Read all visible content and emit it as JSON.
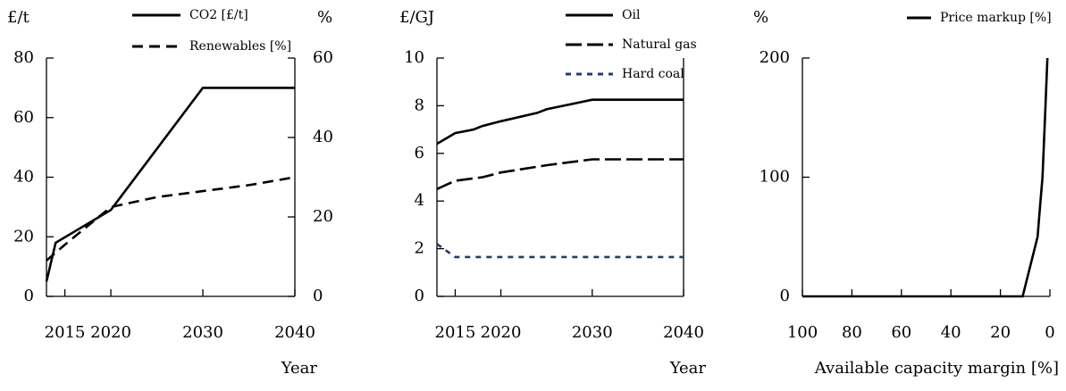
{
  "chart_data": [
    {
      "type": "line",
      "xlabel": "Year",
      "ylabel": "£/t",
      "y2label": "%",
      "xlim": [
        2013,
        2040
      ],
      "xticks": [
        2015,
        2020,
        2030,
        2040
      ],
      "ylim": [
        0,
        80
      ],
      "yticks": [
        0,
        20,
        40,
        60,
        80
      ],
      "y2lim": [
        0,
        60
      ],
      "y2ticks": [
        0,
        20,
        40,
        60
      ],
      "series": [
        {
          "name": "CO2 [£/t]",
          "color": "#000000",
          "line_style": "solid",
          "x": [
            2013,
            2014,
            2020,
            2030,
            2040
          ],
          "values": [
            5,
            18,
            29,
            70,
            70
          ]
        },
        {
          "name": "Renewables [%]",
          "color": "#000000",
          "line_style": "dashed",
          "axis": "y2",
          "x": [
            2013,
            2015,
            2020,
            2025,
            2030,
            2035,
            2040
          ],
          "values": [
            9,
            13,
            22.5,
            25,
            26.5,
            28,
            30
          ]
        }
      ]
    },
    {
      "type": "line",
      "xlabel": "Year",
      "ylabel": "£/GJ",
      "xlim": [
        2013,
        2040
      ],
      "xticks": [
        2015,
        2020,
        2030,
        2040
      ],
      "ylim": [
        0,
        10
      ],
      "yticks": [
        0,
        2,
        4,
        6,
        8,
        10
      ],
      "series": [
        {
          "name": "Oil",
          "color": "#000000",
          "line_style": "solid",
          "x": [
            2013,
            2015,
            2017,
            2018,
            2020,
            2024,
            2025,
            2030,
            2040
          ],
          "values": [
            6.4,
            6.85,
            7.0,
            7.15,
            7.35,
            7.7,
            7.85,
            8.25,
            8.25
          ]
        },
        {
          "name": "Natural gas",
          "color": "#000000",
          "line_style": "longdash",
          "x": [
            2013,
            2015,
            2018,
            2020,
            2025,
            2030,
            2040
          ],
          "values": [
            4.5,
            4.85,
            5.0,
            5.2,
            5.5,
            5.75,
            5.75
          ]
        },
        {
          "name": "Hard coal",
          "color": "#1f3d6b",
          "line_style": "dotted",
          "x": [
            2013,
            2015,
            2040
          ],
          "values": [
            2.2,
            1.65,
            1.65
          ]
        }
      ]
    },
    {
      "type": "line",
      "xlabel": "Available capacity margin [%]",
      "ylabel": "%",
      "xlim": [
        100,
        0
      ],
      "xticks": [
        100,
        80,
        60,
        40,
        20,
        0
      ],
      "ylim": [
        0,
        200
      ],
      "yticks": [
        0,
        100,
        200
      ],
      "series": [
        {
          "name": "Price markup [%]",
          "color": "#000000",
          "line_style": "solid",
          "x": [
            100,
            11,
            5,
            4,
            3,
            2,
            1
          ],
          "values": [
            0,
            0,
            50,
            75,
            100,
            150,
            200
          ]
        }
      ]
    }
  ]
}
